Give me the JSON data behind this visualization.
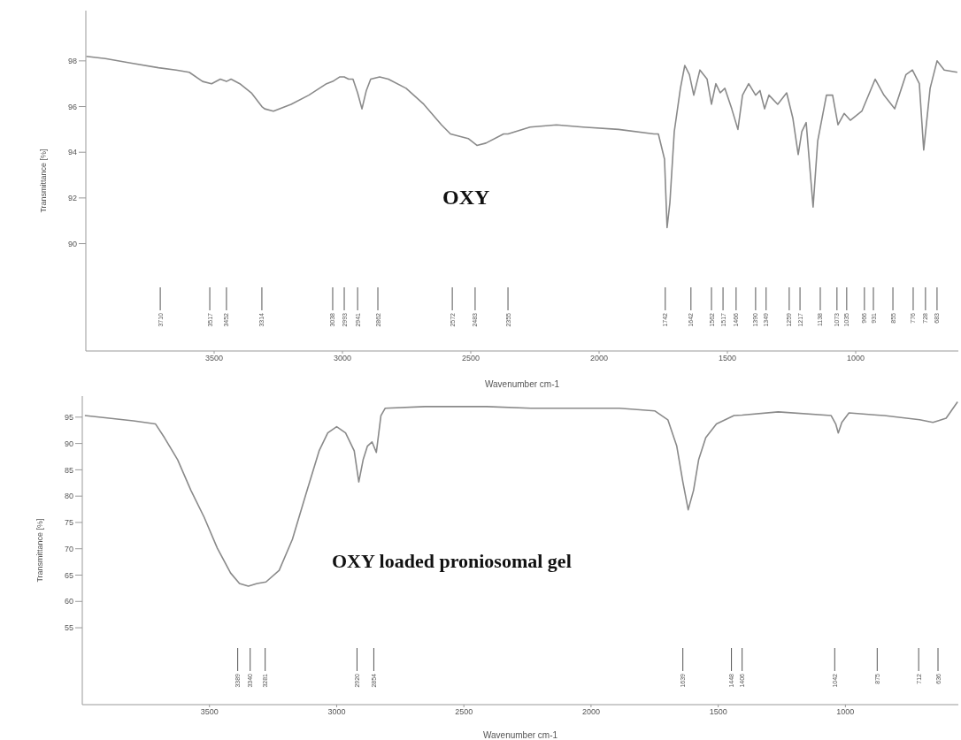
{
  "chart_data": [
    {
      "type": "line",
      "title": "OXY",
      "xlabel": "Wavenumber cm-1",
      "ylabel": "Transmittance [%]",
      "xlim": [
        4000,
        600
      ],
      "xticks": [
        3500,
        3000,
        2500,
        2000,
        1500,
        1000
      ],
      "ylim": [
        85.3,
        100.2
      ],
      "yticks": [
        90,
        92,
        94,
        96,
        98
      ],
      "series": [
        {
          "color": "#8a8a8a",
          "x": [
            3998,
            3924,
            3821,
            3717,
            3648,
            3597,
            3545,
            3510,
            3476,
            3452,
            3434,
            3400,
            3355,
            3314,
            3303,
            3269,
            3200,
            3131,
            3062,
            3038,
            3010,
            2993,
            2976,
            2959,
            2941,
            2924,
            2907,
            2890,
            2855,
            2821,
            2752,
            2683,
            2614,
            2579,
            2510,
            2476,
            2441,
            2372,
            2355,
            2269,
            2166,
            2062,
            1924,
            1786,
            1769,
            1745,
            1735,
            1724,
            1707,
            1683,
            1666,
            1648,
            1631,
            1607,
            1579,
            1562,
            1545,
            1528,
            1510,
            1483,
            1459,
            1441,
            1417,
            1390,
            1373,
            1355,
            1338,
            1304,
            1269,
            1245,
            1224,
            1210,
            1193,
            1166,
            1148,
            1114,
            1090,
            1069,
            1045,
            1021,
            976,
            924,
            890,
            848,
            804,
            779,
            752,
            735,
            710,
            683,
            655,
            604
          ],
          "values": [
            98.2,
            98.1,
            97.9,
            97.7,
            97.6,
            97.5,
            97.1,
            97.0,
            97.2,
            97.1,
            97.2,
            97.0,
            96.6,
            96.0,
            95.9,
            95.8,
            96.1,
            96.5,
            97.0,
            97.1,
            97.3,
            97.3,
            97.2,
            97.2,
            96.6,
            95.9,
            96.7,
            97.2,
            97.3,
            97.2,
            96.8,
            96.1,
            95.2,
            94.8,
            94.6,
            94.3,
            94.4,
            94.8,
            94.8,
            95.1,
            95.2,
            95.1,
            95.0,
            94.8,
            94.8,
            93.7,
            90.7,
            91.8,
            94.9,
            96.8,
            97.8,
            97.4,
            96.5,
            97.6,
            97.2,
            96.1,
            97.0,
            96.6,
            96.8,
            95.9,
            95.0,
            96.5,
            97.0,
            96.5,
            96.7,
            95.9,
            96.5,
            96.1,
            96.6,
            95.5,
            93.9,
            94.9,
            95.3,
            91.6,
            94.5,
            96.5,
            96.5,
            95.2,
            95.7,
            95.4,
            95.8,
            97.2,
            96.5,
            95.9,
            97.4,
            97.6,
            97.0,
            94.1,
            96.8,
            98.0,
            97.6,
            97.5
          ]
        }
      ],
      "annotations": [
        {
          "text": "3710",
          "x": 3710
        },
        {
          "text": "3517",
          "x": 3517
        },
        {
          "text": "3452",
          "x": 3452
        },
        {
          "text": "3314",
          "x": 3314
        },
        {
          "text": "3038",
          "x": 3038
        },
        {
          "text": "2993",
          "x": 2993
        },
        {
          "text": "2941",
          "x": 2941
        },
        {
          "text": "2862",
          "x": 2862
        },
        {
          "text": "2572",
          "x": 2572
        },
        {
          "text": "2483",
          "x": 2483
        },
        {
          "text": "2355",
          "x": 2355
        },
        {
          "text": "1742",
          "x": 1742
        },
        {
          "text": "1642",
          "x": 1642
        },
        {
          "text": "1562",
          "x": 1562
        },
        {
          "text": "1517",
          "x": 1517
        },
        {
          "text": "1466",
          "x": 1466
        },
        {
          "text": "1390",
          "x": 1390
        },
        {
          "text": "1349",
          "x": 1349
        },
        {
          "text": "1259",
          "x": 1259
        },
        {
          "text": "1217",
          "x": 1217
        },
        {
          "text": "1138",
          "x": 1138
        },
        {
          "text": "1073",
          "x": 1073
        },
        {
          "text": "1035",
          "x": 1035
        },
        {
          "text": "966",
          "x": 966
        },
        {
          "text": "931",
          "x": 931
        },
        {
          "text": "855",
          "x": 855
        },
        {
          "text": "776",
          "x": 776
        },
        {
          "text": "728",
          "x": 728
        },
        {
          "text": "683",
          "x": 683
        }
      ]
    },
    {
      "type": "line",
      "title": "OXY loaded proniosomal gel",
      "xlabel": "Wavenumber cm-1",
      "ylabel": "Transmittance [%]",
      "xlim": [
        4000,
        556
      ],
      "xticks": [
        3500,
        3000,
        2500,
        2000,
        1500,
        1000
      ],
      "ylim": [
        40.4,
        99
      ],
      "yticks": [
        55,
        60,
        65,
        70,
        75,
        80,
        85,
        90,
        95
      ],
      "series": [
        {
          "color": "#8a8a8a",
          "x": [
            3990,
            3799,
            3712,
            3677,
            3625,
            3573,
            3521,
            3469,
            3417,
            3382,
            3347,
            3313,
            3278,
            3226,
            3174,
            3122,
            3069,
            3035,
            3000,
            2965,
            2931,
            2913,
            2896,
            2879,
            2861,
            2844,
            2826,
            2809,
            2653,
            2410,
            2236,
            2028,
            1889,
            1750,
            1698,
            1663,
            1639,
            1618,
            1597,
            1577,
            1549,
            1507,
            1438,
            1406,
            1264,
            1056,
            1038,
            1028,
            1014,
            986,
            875,
            847,
            708,
            656,
            636,
            604,
            559
          ],
          "values": [
            95.3,
            94.3,
            93.7,
            91.1,
            86.9,
            81.1,
            76.0,
            70.1,
            65.4,
            63.4,
            62.9,
            63.4,
            63.7,
            65.9,
            71.8,
            80.2,
            88.6,
            92.0,
            93.2,
            92.0,
            88.6,
            82.7,
            86.9,
            89.5,
            90.3,
            88.3,
            95.3,
            96.7,
            97.0,
            97.0,
            96.7,
            96.7,
            96.7,
            96.2,
            94.5,
            89.5,
            82.7,
            77.4,
            81.1,
            86.9,
            91.1,
            93.7,
            95.3,
            95.4,
            96.0,
            95.3,
            93.7,
            92.0,
            94.0,
            95.8,
            95.4,
            95.3,
            94.5,
            94.0,
            94.3,
            94.8,
            97.9
          ]
        }
      ],
      "annotations": [
        {
          "text": "3389",
          "x": 3389
        },
        {
          "text": "3340",
          "x": 3340
        },
        {
          "text": "3281",
          "x": 3281
        },
        {
          "text": "2920",
          "x": 2920
        },
        {
          "text": "2854",
          "x": 2854
        },
        {
          "text": "1639",
          "x": 1639
        },
        {
          "text": "1448",
          "x": 1448
        },
        {
          "text": "1406",
          "x": 1406
        },
        {
          "text": "1042",
          "x": 1042
        },
        {
          "text": "875",
          "x": 875
        },
        {
          "text": "712",
          "x": 712
        },
        {
          "text": "636",
          "x": 636
        }
      ]
    }
  ]
}
